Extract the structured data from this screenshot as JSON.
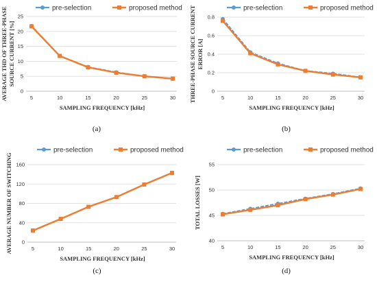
{
  "colors": {
    "pre_selection": "#5b9bd5",
    "proposed": "#ed7d31",
    "grid": "#d9d9d9",
    "axis": "#bfbfbf"
  },
  "chart_data": [
    {
      "type": "line",
      "caption": "(a)",
      "xlabel": "SAMPLING FREQUENCY [kHz]",
      "ylabel": [
        "AVERAGE THD OF THREE-PHASE",
        "SOURCE CURRENT [%]"
      ],
      "x": [
        5,
        10,
        15,
        20,
        25,
        30
      ],
      "xlim": [
        5,
        30
      ],
      "ylim": [
        0,
        25
      ],
      "yticks": [
        "0",
        "5",
        "10",
        "15",
        "20",
        "25"
      ],
      "grid": true,
      "legend": "top",
      "series": [
        {
          "name": "pre-selection",
          "values": [
            21.8,
            11.8,
            8.1,
            6.3,
            5.0,
            4.2
          ]
        },
        {
          "name": "proposed method",
          "values": [
            21.7,
            11.8,
            8.0,
            6.2,
            5.0,
            4.2
          ]
        }
      ]
    },
    {
      "type": "line",
      "caption": "(b)",
      "xlabel": "SAMPLING FREQUENCY [kHz]",
      "ylabel": [
        "THREE-PHASE SOURCE CURRENT",
        "ERROR [A]"
      ],
      "x": [
        5,
        10,
        15,
        20,
        25,
        30
      ],
      "xlim": [
        5,
        30
      ],
      "ylim": [
        0,
        0.8
      ],
      "yticks": [
        "0",
        "0.2",
        "0.4",
        "0.6",
        "0.8"
      ],
      "grid": true,
      "legend": "top",
      "series": [
        {
          "name": "pre-selection",
          "values": [
            0.78,
            0.42,
            0.3,
            0.22,
            0.19,
            0.15
          ]
        },
        {
          "name": "proposed method",
          "values": [
            0.76,
            0.41,
            0.29,
            0.22,
            0.18,
            0.15
          ]
        }
      ]
    },
    {
      "type": "line",
      "caption": "(c)",
      "xlabel": "SAMPLING FREQUENCY [kHz]",
      "ylabel": [
        "AVERAGE NUMBER OF SWITCHING"
      ],
      "x": [
        5,
        10,
        15,
        20,
        25,
        30
      ],
      "xlim": [
        5,
        30
      ],
      "ylim": [
        0,
        160
      ],
      "yticks": [
        "0",
        "40",
        "80",
        "120",
        "160"
      ],
      "grid": true,
      "legend": "top",
      "series": [
        {
          "name": "pre-selection",
          "values": [
            24,
            48,
            73,
            93,
            119,
            143
          ]
        },
        {
          "name": "proposed method",
          "values": [
            24,
            48,
            73,
            93,
            119,
            143
          ]
        }
      ]
    },
    {
      "type": "line",
      "caption": "(d)",
      "xlabel": "SAMPLING FREQUENCY [kHz]",
      "ylabel": [
        "TOTAL LOSSES [W]"
      ],
      "x": [
        5,
        10,
        15,
        20,
        25,
        30
      ],
      "xlim": [
        5,
        30
      ],
      "ylim": [
        40,
        55
      ],
      "yticks": [
        "40",
        "45",
        "50",
        "55"
      ],
      "grid": true,
      "legend": "top",
      "series": [
        {
          "name": "pre-selection",
          "values": [
            45.3,
            46.3,
            47.3,
            48.3,
            49.2,
            50.3
          ]
        },
        {
          "name": "proposed method",
          "values": [
            45.2,
            46.1,
            47.0,
            48.2,
            49.1,
            50.2
          ]
        }
      ]
    }
  ]
}
